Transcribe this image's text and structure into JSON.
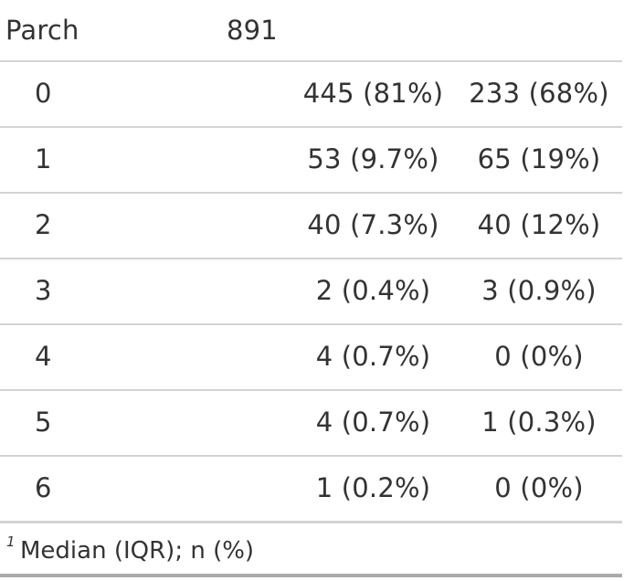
{
  "variable": {
    "label": "Parch",
    "n": "891"
  },
  "levels": [
    {
      "label": "0",
      "g1": "445 (81%)",
      "g2": "233 (68%)"
    },
    {
      "label": "1",
      "g1": "53 (9.7%)",
      "g2": "65 (19%)"
    },
    {
      "label": "2",
      "g1": "40 (7.3%)",
      "g2": "40 (12%)"
    },
    {
      "label": "3",
      "g1": "2 (0.4%)",
      "g2": "3 (0.9%)"
    },
    {
      "label": "4",
      "g1": "4 (0.7%)",
      "g2": "0 (0%)"
    },
    {
      "label": "5",
      "g1": "4 (0.7%)",
      "g2": "1 (0.3%)"
    },
    {
      "label": "6",
      "g1": "1 (0.2%)",
      "g2": "0 (0%)"
    }
  ],
  "footnote": {
    "marker": "1",
    "text": "Median (IQR); n (%)"
  }
}
